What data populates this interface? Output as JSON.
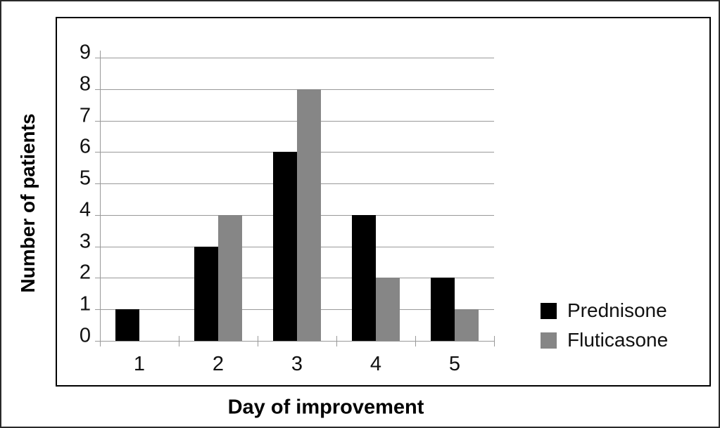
{
  "chart_data": {
    "type": "bar",
    "title": "",
    "categories": [
      "1",
      "2",
      "3",
      "4",
      "5"
    ],
    "series": [
      {
        "name": "Prednisone",
        "color": "#000000",
        "values": [
          1,
          3,
          6,
          4,
          2
        ]
      },
      {
        "name": "Fluticasone",
        "color": "#868686",
        "values": [
          0,
          4,
          8,
          2,
          1
        ]
      }
    ],
    "xlabel": "Day of improvement",
    "ylabel": "Number of patients",
    "ylim": [
      0,
      9
    ],
    "yticks": [
      0,
      1,
      2,
      3,
      4,
      5,
      6,
      7,
      8,
      9
    ],
    "grid": true,
    "gridline_color": "#999999",
    "axis_color": "#999999",
    "frame_border_color": "#000000",
    "legend_position": "right-inside"
  }
}
